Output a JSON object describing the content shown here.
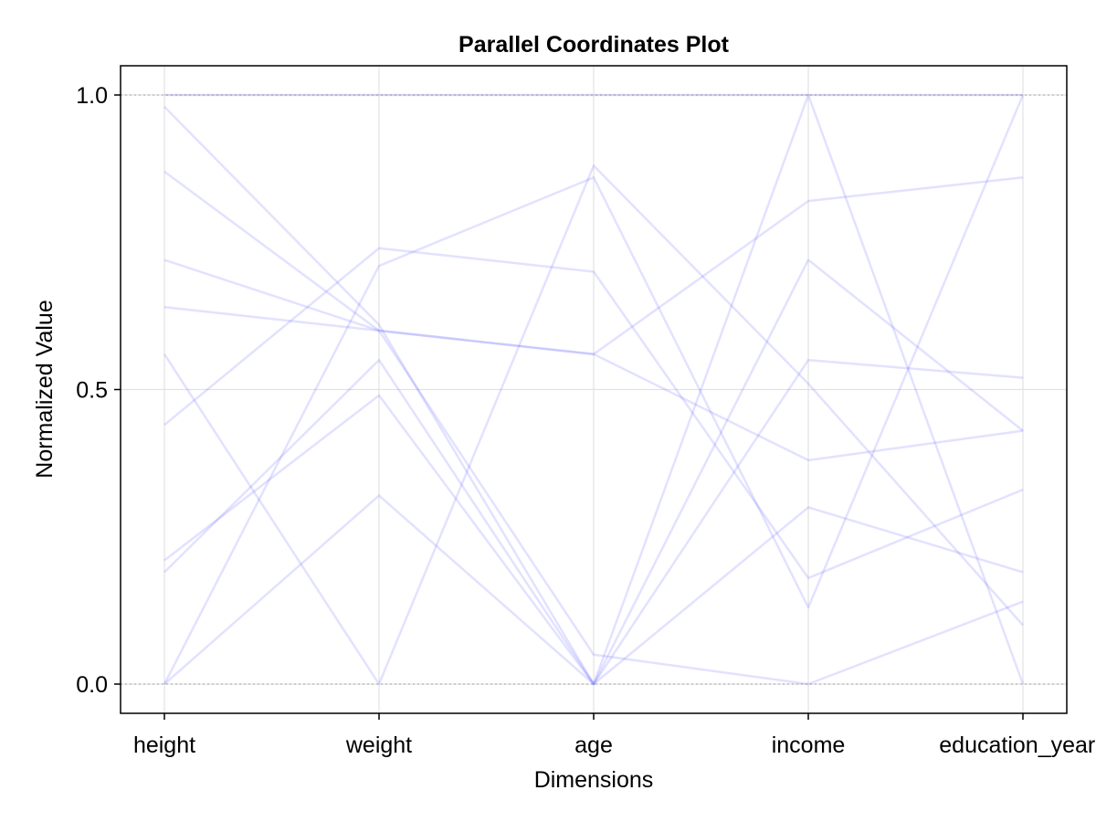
{
  "chart_data": {
    "type": "line",
    "title": "Parallel Coordinates Plot",
    "xlabel": "Dimensions",
    "ylabel": "Normalized Value",
    "categories": [
      "height",
      "weight",
      "age",
      "income",
      "education_years"
    ],
    "ylim": [
      -0.05,
      1.05
    ],
    "yticks": [
      "0.0",
      "0.5",
      "1.0"
    ],
    "ytick_values": [
      0.0,
      0.5,
      1.0
    ],
    "grid": true,
    "reference_lines": [
      0.0,
      1.0
    ],
    "line_color": "#4d4dff",
    "series": [
      {
        "values": [
          0.98,
          0.61,
          0.0,
          0.72,
          0.43
        ]
      },
      {
        "values": [
          0.87,
          0.6,
          0.56,
          0.82,
          0.86
        ]
      },
      {
        "values": [
          0.72,
          0.6,
          0.05,
          0.0,
          0.14
        ]
      },
      {
        "values": [
          0.64,
          0.6,
          0.56,
          0.38,
          0.43
        ]
      },
      {
        "values": [
          0.56,
          0.0,
          0.88,
          0.51,
          0.1
        ]
      },
      {
        "values": [
          0.44,
          0.74,
          0.7,
          0.18,
          0.33
        ]
      },
      {
        "values": [
          0.21,
          0.49,
          0.0,
          0.55,
          0.52
        ]
      },
      {
        "values": [
          0.19,
          0.55,
          0.0,
          0.3,
          0.19
        ]
      },
      {
        "values": [
          0.0,
          0.32,
          0.0,
          1.0,
          0.0
        ]
      },
      {
        "values": [
          0.0,
          0.71,
          0.86,
          0.13,
          1.0
        ]
      },
      {
        "values": [
          1.0,
          1.0,
          1.0,
          1.0,
          1.0
        ]
      }
    ]
  }
}
